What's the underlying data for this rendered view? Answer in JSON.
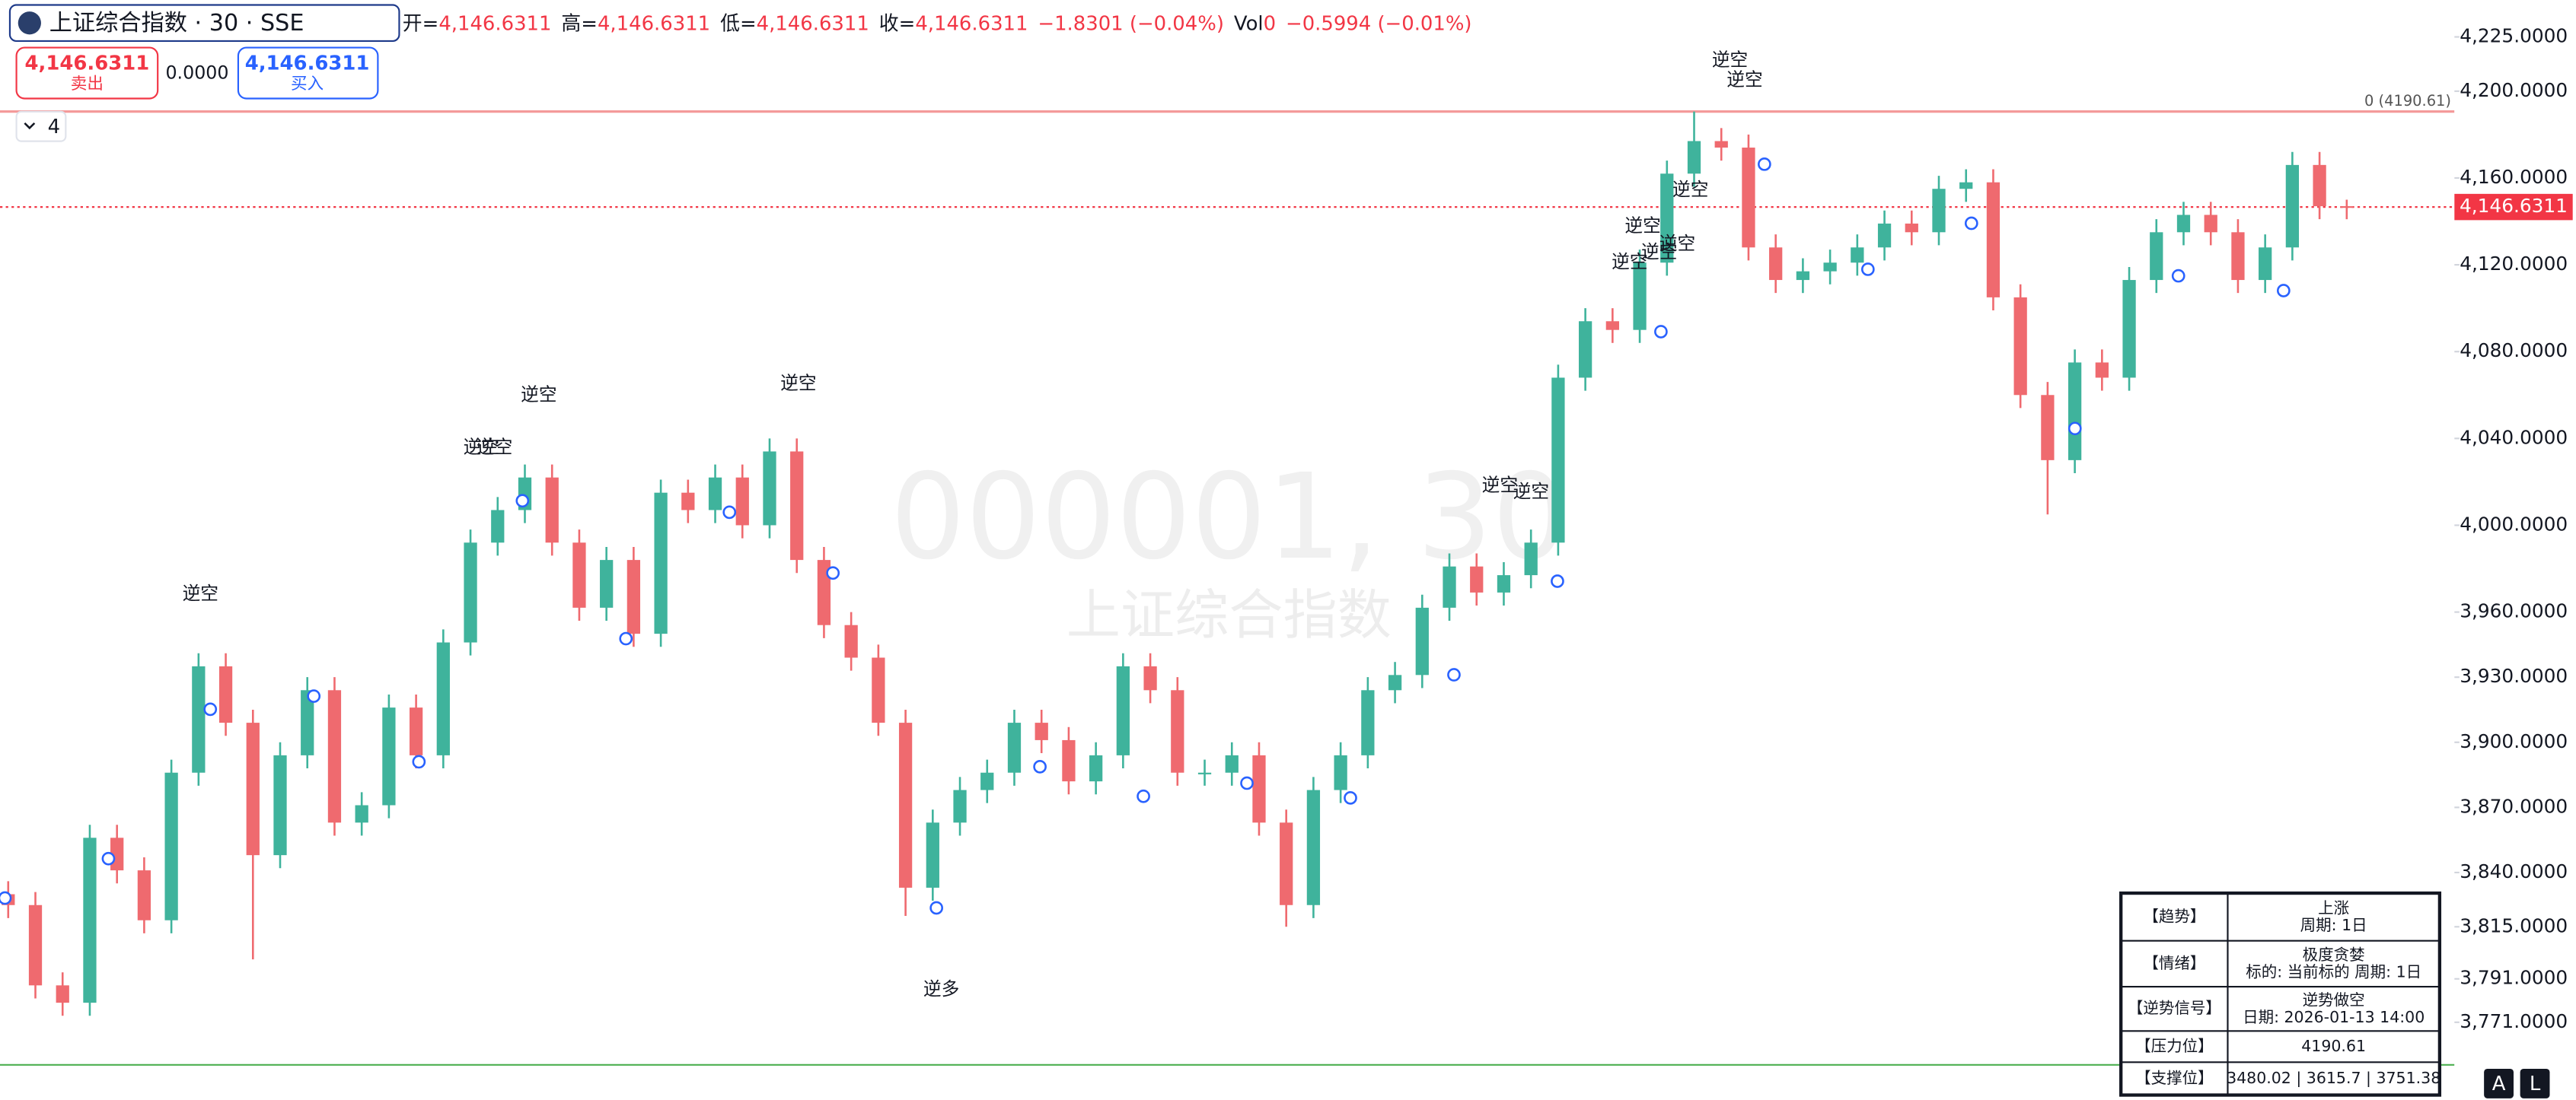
{
  "chart_data": {
    "type": "candlestick",
    "symbol": "上证综合指数 · 30 · SSE",
    "legend": [
      {
        "label": "开=",
        "value": "4,146.6311"
      },
      {
        "label": "高=",
        "value": "4,146.6311"
      },
      {
        "label": "低=",
        "value": "4,146.6311"
      },
      {
        "label": "收=",
        "value": "4,146.6311"
      }
    ],
    "change": "−1.8301 (−0.04%)",
    "volume": {
      "label": "Vol",
      "value": "0",
      "change": "−0.5994 (−0.01%)"
    },
    "sell": {
      "price": "4,146.6311",
      "label": "卖出"
    },
    "spread": "0.0000",
    "buy": {
      "price": "4,146.6311",
      "label": "买入"
    },
    "interval": "4",
    "watermark": [
      "000001, 30",
      "上证综合指数"
    ],
    "up_color": "#3fb39c",
    "down_color": "#ef6a6f",
    "open": [
      3830,
      3825,
      3788,
      3780,
      3856,
      3841,
      3818,
      3886,
      3935,
      3909,
      3848,
      3894,
      3924,
      3863,
      3871,
      3916,
      3894,
      3946,
      3992,
      4007,
      4022,
      3992,
      3962,
      3984,
      3950,
      4015,
      4007,
      4022,
      4000,
      4034,
      3984,
      3954,
      3939,
      3909,
      3833,
      3863,
      3878,
      3886,
      3909,
      3901,
      3882,
      3894,
      3935,
      3924,
      3886,
      3886,
      3894,
      3863,
      3825,
      3878,
      3894,
      3924,
      3931,
      3962,
      3981,
      3969,
      3977,
      3992,
      4068,
      4094,
      4090,
      4121,
      4162,
      4177,
      4174,
      4128,
      4113,
      4117,
      4121,
      4128,
      4139,
      4135,
      4155,
      4158,
      4105,
      4060,
      4030,
      4075,
      4068,
      4113,
      4135,
      4143,
      4135,
      4113,
      4128,
      4166,
      4147
    ],
    "high": [
      3836,
      3831,
      3794,
      3862,
      3862,
      3847,
      3892,
      3941,
      3941,
      3915,
      3900,
      3930,
      3930,
      3877,
      3922,
      3922,
      3952,
      3998,
      4013,
      4028,
      4028,
      3998,
      3990,
      3990,
      4021,
      4021,
      4028,
      4028,
      4040,
      4040,
      3990,
      3960,
      3945,
      3915,
      3869,
      3884,
      3892,
      3915,
      3915,
      3907,
      3900,
      3941,
      3941,
      3930,
      3892,
      3900,
      3900,
      3869,
      3884,
      3900,
      3930,
      3937,
      3968,
      3987,
      3987,
      3983,
      3998,
      4074,
      4100,
      4100,
      4127,
      4168,
      4190.61,
      4183,
      4180,
      4134,
      4123,
      4127,
      4134,
      4145,
      4145,
      4161,
      4164,
      4164,
      4111,
      4066,
      4081,
      4081,
      4119,
      4141,
      4149,
      4149,
      4141,
      4134,
      4172,
      4172,
      4150
    ],
    "low": [
      3819,
      3782,
      3774,
      3774,
      3835,
      3812,
      3812,
      3880,
      3903,
      3800,
      3842,
      3888,
      3857,
      3857,
      3865,
      3888,
      3888,
      3940,
      3986,
      4001,
      3986,
      3956,
      3956,
      3944,
      3944,
      4001,
      4001,
      3994,
      3994,
      3978,
      3948,
      3933,
      3903,
      3820,
      3827,
      3857,
      3872,
      3880,
      3895,
      3876,
      3876,
      3888,
      3918,
      3880,
      3880,
      3880,
      3857,
      3815,
      3819,
      3872,
      3888,
      3918,
      3925,
      3956,
      3963,
      3963,
      3971,
      3986,
      4062,
      4084,
      4084,
      4115,
      4156,
      4168,
      4122,
      4107,
      4107,
      4111,
      4115,
      4122,
      4129,
      4129,
      4149,
      4099,
      4054,
      4005,
      4024,
      4062,
      4062,
      4107,
      4129,
      4129,
      4107,
      4107,
      4122,
      4141,
      4141
    ],
    "close": [
      3825,
      3788,
      3780,
      3856,
      3841,
      3818,
      3886,
      3935,
      3909,
      3848,
      3894,
      3924,
      3863,
      3871,
      3916,
      3894,
      3946,
      3992,
      4007,
      4022,
      3992,
      3962,
      3984,
      3950,
      4015,
      4007,
      4022,
      4000,
      4034,
      3984,
      3954,
      3939,
      3909,
      3833,
      3863,
      3878,
      3886,
      3909,
      3901,
      3882,
      3894,
      3935,
      3924,
      3886,
      3886,
      3894,
      3863,
      3825,
      3878,
      3894,
      3924,
      3931,
      3962,
      3981,
      3969,
      3977,
      3992,
      4068,
      4094,
      4090,
      4121,
      4162,
      4177,
      4174,
      4128,
      4113,
      4117,
      4121,
      4128,
      4139,
      4135,
      4155,
      4158,
      4105,
      4060,
      4030,
      4075,
      4068,
      4113,
      4135,
      4143,
      4135,
      4113,
      4128,
      4166,
      4147,
      4146.6311
    ],
    "ylim": [
      3742,
      4242
    ],
    "yticks": [
      {
        "value": 4225,
        "label": "4,225.0000"
      },
      {
        "value": 4200,
        "label": "4,200.0000"
      },
      {
        "value": 4160,
        "label": "4,160.0000"
      },
      {
        "value": 4120,
        "label": "4,120.0000"
      },
      {
        "value": 4080,
        "label": "4,080.0000"
      },
      {
        "value": 4040,
        "label": "4,040.0000"
      },
      {
        "value": 4000,
        "label": "4,000.0000"
      },
      {
        "value": 3960,
        "label": "3,960.0000"
      },
      {
        "value": 3930,
        "label": "3,930.0000"
      },
      {
        "value": 3900,
        "label": "3,900.0000"
      },
      {
        "value": 3870,
        "label": "3,870.0000"
      },
      {
        "value": 3840,
        "label": "3,840.0000"
      },
      {
        "value": 3815,
        "label": "3,815.0000"
      },
      {
        "value": 3791,
        "label": "3,791.0000"
      },
      {
        "value": 3771,
        "label": "3,771.0000"
      }
    ],
    "resistance_line": {
      "value": 4190.61,
      "label": "0 (4190.61)"
    },
    "last_price": {
      "value": 4146.6311,
      "label": "4,146.6311"
    },
    "support_line": 3751.38,
    "annotations": [
      "逆空",
      "逆空",
      "逆空",
      "逆空",
      "逆空",
      "逆空",
      "逆空",
      "逆空",
      "逆空",
      "逆空",
      "逆空",
      "逆空",
      "逆空",
      "逆空",
      "逆多"
    ],
    "table": {
      "rows": [
        [
          "【趋势】",
          "上涨",
          "周期: 1日"
        ],
        [
          "【情绪】",
          "极度贪婪",
          "标的: 当前标的 周期: 1日"
        ],
        [
          "【逆势信号】",
          "逆势做空",
          "日期: 2026-01-13 14:00"
        ],
        [
          "【压力位】",
          "4190.61"
        ],
        [
          "【支撑位】",
          "3480.02 | 3615.7 | 3751.38"
        ]
      ]
    },
    "buttons": [
      "A",
      "L"
    ]
  }
}
